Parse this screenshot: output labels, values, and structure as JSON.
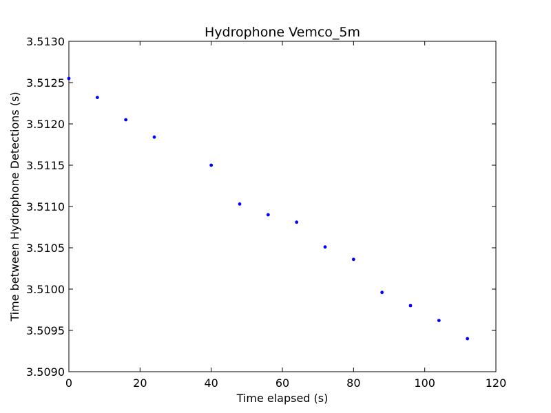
{
  "chart_data": {
    "type": "scatter",
    "title": "Hydrophone Vemco_5m",
    "xlabel": "Time elapsed (s)",
    "ylabel": "Time between Hydrophone Detections (s)",
    "xlim": [
      0,
      120
    ],
    "ylim": [
      3.509,
      3.513
    ],
    "xticks": [
      "0",
      "20",
      "40",
      "60",
      "80",
      "100",
      "120"
    ],
    "yticks": [
      "3.5090",
      "3.5095",
      "3.5100",
      "3.5105",
      "3.5110",
      "3.5115",
      "3.5120",
      "3.5125",
      "3.5130"
    ],
    "grid": false,
    "marker_color": "#0000ff",
    "series": [
      {
        "x": [
          0,
          8,
          16,
          24,
          40,
          48,
          56,
          64,
          72,
          80,
          88,
          96,
          104,
          112
        ],
        "y": [
          3.51255,
          3.51232,
          3.51205,
          3.51184,
          3.5115,
          3.51103,
          3.5109,
          3.51081,
          3.51051,
          3.51036,
          3.50996,
          3.5098,
          3.50962,
          3.5094
        ]
      }
    ]
  }
}
